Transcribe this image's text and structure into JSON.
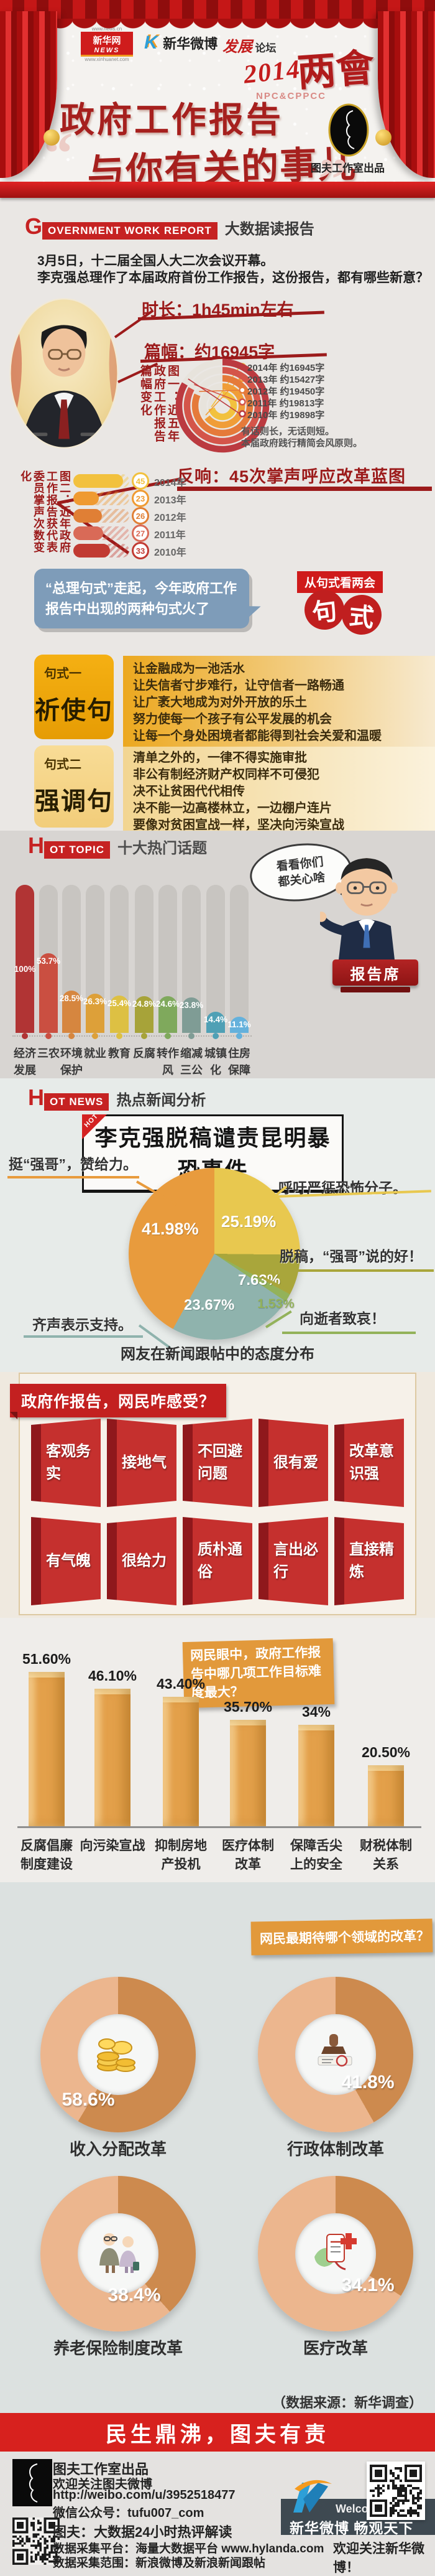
{
  "curtain": {
    "logo_news_url_top": "www.news.cn",
    "logo_news_cn": "新华网",
    "logo_news_en": "NEWS",
    "logo_news_url_bottom": "www.xinhuanet.com",
    "logo_weibo_k": "K",
    "logo_weibo_cn": "新华微博",
    "logo_forum_a": "发展",
    "logo_forum_b": "论坛",
    "year": "2014",
    "meeting": "两會",
    "npc": "NPC&CPPCC",
    "quote_open": "“",
    "quote_close": "”",
    "title1": "政府工作报告",
    "title2": "与你有关的事儿",
    "studio": "图夫工作室出品"
  },
  "s1": {
    "g": "G",
    "en": "OVERNMENT WORK REPORT",
    "cn": "大数据读报告",
    "p1": "3月5日，十二届全国人大二次会议开幕。",
    "p2": "李克强总理作了本届政府首份工作报告，这份报告，都有哪些新意？",
    "duration": "时长：1h45min左右",
    "length": "篇幅：约16945字"
  },
  "response": {
    "heading": "反响：45次掌声呼应改革蓝图"
  },
  "sentence": {
    "bubble": "“总理句式”走起，今年政府工作报告中出现的两种句式火了",
    "label": "从句式看两会",
    "stamp1": "句",
    "stamp2": "式",
    "type1": {
      "tag": "句式一",
      "name": "祈使句",
      "lines": [
        "让金融成为一池活水",
        "让失信者寸步难行，让守信者一路畅通",
        "让广袤大地成为对外开放的乐土",
        "努力使每一个孩子有公平发展的机会",
        "让每一个身处困境者都能得到社会关爱和温暖"
      ]
    },
    "type2": {
      "tag": "句式二",
      "name": "强调句",
      "lines": [
        "清单之外的，一律不得实施审批",
        "非公有制经济财产权同样不可侵犯",
        "决不让贫困代代相传",
        "决不能一边高楼林立，一边棚户连片",
        "要像对贫困宣战一样，坚决向污染宣战"
      ]
    }
  },
  "topics": {
    "h": "H",
    "box": "OT TOPIC",
    "cn": "十大热门话题",
    "bubble1": "看看你们",
    "bubble2": "都关心啥",
    "podium": "报告席"
  },
  "news": {
    "h": "H",
    "box": "OT NEWS",
    "cn": "热点新闻分析",
    "ribbon": "HOT",
    "headline": "李克强脱稿谴责昆明暴恐事件"
  },
  "feelings": {
    "title": "政府作报告，网民咋感受？",
    "words": [
      "客观务实",
      "接地气",
      "不回避问题",
      "很有爱",
      "改革意识强",
      "有气魄",
      "很给力",
      "质朴通俗",
      "言出必行",
      "直接精炼"
    ]
  },
  "reforms": {
    "source": "（数据来源：新华调查）"
  },
  "banner": {
    "text": "民生鼎沸，图夫有责"
  },
  "footer": {
    "studio_name": "图夫工作室出品",
    "follow": "欢迎关注图夫微博",
    "weibo_url": "http://weibo.com/u/3952518477",
    "wechat": "微信公众号：tufu007_com",
    "tagline": "图夫：大数据24小时热评解读",
    "platform": "数据采集平台：海量大数据平台 www.hylanda.com",
    "scope": "数据采集范围：新浪微博及新浪新闻跟帖",
    "welcome": "Welcome !",
    "slogan": "新华微博 畅观天下",
    "follow2": "欢迎关注新华微博！"
  },
  "chart_data": [
    {
      "id": "report_length",
      "type": "radial-bar",
      "title": "图一：近五年政府工作报告篇幅变化",
      "categories": [
        "2014年",
        "2013年",
        "2012年",
        "2011年",
        "2010年"
      ],
      "values": [
        16945,
        15427,
        19450,
        19813,
        19898
      ],
      "value_labels": [
        "约16945字",
        "约15427字",
        "约19450字",
        "约19813字",
        "约19898字"
      ],
      "colors": [
        "#f2c13e",
        "#f09d38",
        "#e57a3a",
        "#d4554a",
        "#bb3a40"
      ],
      "max": 19898,
      "note_lines": [
        "有话则长，无话则短。",
        "本届政府践行精简会风原则。"
      ]
    },
    {
      "id": "applause",
      "type": "bar-horizontal",
      "title": "图二：近年政府工作报告获代表委员掌声次数变化",
      "categories": [
        "2014年",
        "2013年",
        "2012年",
        "2011年",
        "2010年"
      ],
      "values": [
        45,
        23,
        26,
        27,
        33
      ],
      "colors": [
        "#f2c13e",
        "#ef9a31",
        "#e07f35",
        "#d96a57",
        "#c13a32"
      ],
      "max": 45
    },
    {
      "id": "hot_topics",
      "type": "bar",
      "title": "十大热门话题",
      "unit": "%",
      "ylim": [
        0,
        100
      ],
      "categories": [
        "经济发展",
        "三农",
        "环境保护",
        "就业",
        "教育",
        "反腐",
        "转作风",
        "缩减三公",
        "城镇化",
        "住房保障"
      ],
      "label_lines": [
        "经济\n发展",
        "三农",
        "环境\n保护",
        "就业",
        "教育",
        "反腐",
        "转作\n风",
        "缩减\n三公",
        "城镇\n化",
        "住房\n保障"
      ],
      "values": [
        100,
        53.7,
        28.5,
        26.3,
        25.4,
        24.8,
        24.6,
        23.8,
        14.4,
        11.1
      ],
      "value_labels": [
        "100%",
        "53.7%",
        "28.5%",
        "26.3%",
        "25.4%",
        "24.8%",
        "24.6%",
        "23.8%",
        "14.4%",
        "11.1%"
      ],
      "colors": [
        "#b13434",
        "#ca4f41",
        "#d6863f",
        "#dda039",
        "#ddc043",
        "#a7a339",
        "#7fa95c",
        "#7f9c95",
        "#4fa0b5",
        "#64b1dc"
      ]
    },
    {
      "id": "attitudes",
      "type": "pie",
      "title": "网友在新闻跟帖中的态度分布",
      "labels": [
        "挺“强哥”，赞给力。",
        "呼吁严惩恐怖分子。",
        "脱稿，“强哥”说的好！",
        "向逝者致哀！",
        "齐声表示支持。"
      ],
      "values": [
        41.98,
        25.19,
        7.63,
        1.53,
        23.67
      ],
      "value_labels": [
        "41.98%",
        "25.19%",
        "7.63%",
        "1.53%",
        "23.67%"
      ],
      "colors": [
        "#e89b3d",
        "#e8c84f",
        "#a9a63b",
        "#93b25a",
        "#8fb3ad"
      ]
    },
    {
      "id": "goal_difficulty",
      "type": "bar",
      "title": "网民眼中，政府工作报告中哪几项工作目标难度最大？",
      "ylim": [
        0,
        60
      ],
      "categories": [
        "反腐倡廉制度建设",
        "向污染宣战",
        "抑制房地产投机",
        "医疗体制改革",
        "保障舌尖上的安全",
        "财税体制关系"
      ],
      "label_lines": [
        "反腐倡廉\n制度建设",
        "向污染宣战",
        "抑制房地\n产投机",
        "医疗体制\n改革",
        "保障舌尖\n上的安全",
        "财税体制\n关系"
      ],
      "values": [
        51.6,
        46.1,
        43.4,
        35.7,
        34,
        20.5
      ],
      "value_labels": [
        "51.60%",
        "46.10%",
        "43.40%",
        "35.70%",
        "34%",
        "20.50%"
      ],
      "color": "#e09a3e"
    },
    {
      "id": "expected_reforms",
      "type": "donut",
      "title": "网民最期待哪个领域的改革？",
      "categories": [
        "收入分配改革",
        "行政体制改革",
        "养老保险制度改革",
        "医疗改革"
      ],
      "values": [
        58.6,
        41.8,
        38.4,
        34.1
      ],
      "value_labels": [
        "58.6%",
        "41.8%",
        "38.4%",
        "34.1%"
      ],
      "icons": [
        "coins-icon",
        "stamp-icon",
        "elderly-icon",
        "medical-icon"
      ],
      "colors": {
        "dark": "#cd8a4e",
        "light": "#ecb68e"
      }
    }
  ]
}
